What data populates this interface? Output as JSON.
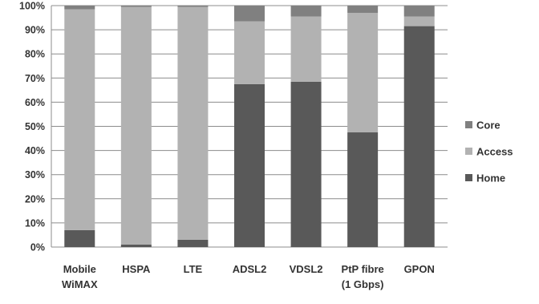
{
  "chart_data": {
    "type": "bar",
    "stacked": true,
    "percent": true,
    "title": "",
    "xlabel": "",
    "ylabel": "",
    "ylim": [
      0,
      100
    ],
    "yticks": [
      "0%",
      "10%",
      "20%",
      "30%",
      "40%",
      "50%",
      "60%",
      "70%",
      "80%",
      "90%",
      "100%"
    ],
    "grid": true,
    "legend_position": "right",
    "categories": [
      [
        "Mobile",
        "WiMAX"
      ],
      [
        "HSPA"
      ],
      [
        "LTE"
      ],
      [
        "ADSL2"
      ],
      [
        "VDSL2"
      ],
      [
        "PtP fibre",
        "(1 Gbps)"
      ],
      [
        "GPON"
      ]
    ],
    "series": [
      {
        "name": "Home",
        "color": "#595959",
        "values": [
          7,
          1,
          3,
          67.5,
          68.5,
          47.5,
          91.5
        ]
      },
      {
        "name": "Access",
        "color": "#b2b2b2",
        "values": [
          91.5,
          98.5,
          96.5,
          26,
          27,
          49.5,
          4
        ]
      },
      {
        "name": "Core",
        "color": "#808080",
        "values": [
          1.5,
          0.5,
          0.5,
          6.5,
          4.5,
          3,
          4.5
        ]
      }
    ],
    "legend_order": [
      "Core",
      "Access",
      "Home"
    ]
  }
}
